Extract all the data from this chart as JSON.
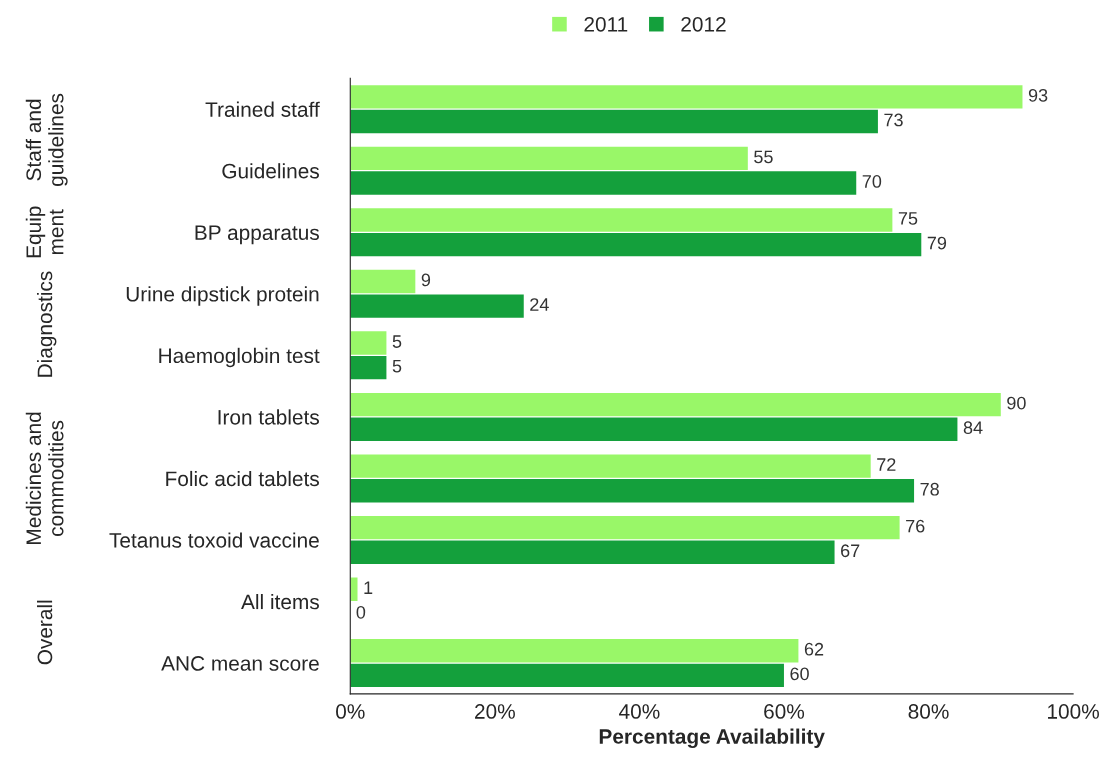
{
  "chart_data": {
    "type": "bar",
    "orientation": "horizontal",
    "xlabel": "Percentage Availability",
    "categories": [
      "Trained staff",
      "Guidelines",
      "BP apparatus",
      "Urine dipstick protein",
      "Haemoglobin test",
      "Iron tablets",
      "Folic acid tablets",
      "Tetanus toxoid vaccine",
      "All items",
      "ANC mean score"
    ],
    "series": [
      {
        "name": "2011",
        "color": "#99f768",
        "values": [
          93,
          55,
          75,
          9,
          5,
          90,
          72,
          76,
          1,
          62
        ]
      },
      {
        "name": "2012",
        "color": "#14a03c",
        "values": [
          73,
          70,
          79,
          24,
          5,
          84,
          78,
          67,
          0,
          60
        ]
      }
    ],
    "xlim": [
      0,
      100
    ],
    "xticks": [
      {
        "value": 0,
        "label": "0%"
      },
      {
        "value": 20,
        "label": "20%"
      },
      {
        "value": 40,
        "label": "40%"
      },
      {
        "value": 60,
        "label": "60%"
      },
      {
        "value": 80,
        "label": "80%"
      },
      {
        "value": 100,
        "label": "100%"
      }
    ],
    "annotations": [
      "Staff and\nguidelines",
      "Equip\nment",
      "Diagnostics",
      "Medicines and\ncommodities",
      "Overall"
    ],
    "data_labels": true,
    "legend": "top",
    "grid": false
  }
}
